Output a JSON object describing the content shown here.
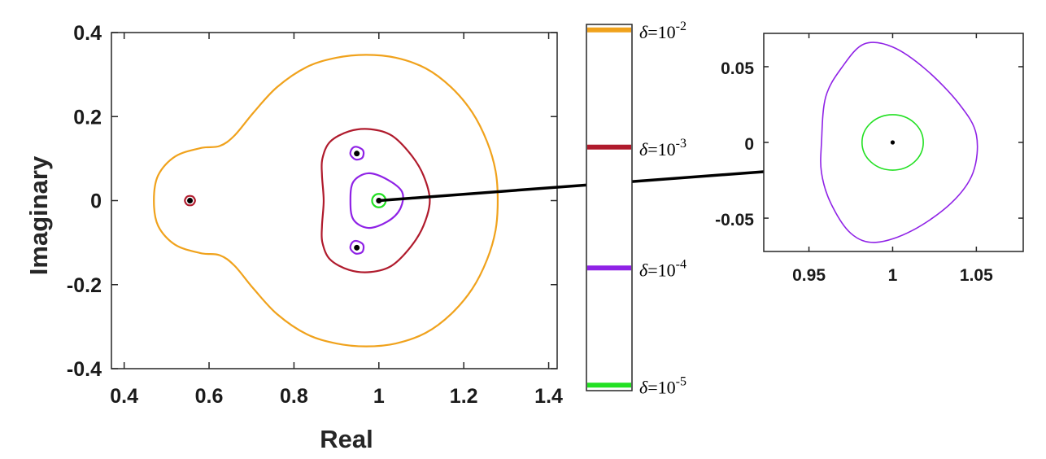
{
  "chart_data": [
    {
      "type": "line",
      "name": "main-plot",
      "xlabel": "Real",
      "ylabel": "Imaginary",
      "xlim": [
        0.37,
        1.42
      ],
      "ylim": [
        -0.4,
        0.4
      ],
      "xticks": [
        "0.4",
        "0.6",
        "0.8",
        "1",
        "1.2",
        "1.4"
      ],
      "xtick_values": [
        0.4,
        0.6,
        0.8,
        1.0,
        1.2,
        1.4
      ],
      "yticks": [
        "0.4",
        "0.2",
        "0",
        "-0.2",
        "-0.4"
      ],
      "ytick_values": [
        0.4,
        0.2,
        0.0,
        -0.2,
        -0.4
      ],
      "grid": false,
      "eigenvalues": [
        {
          "x": 0.555,
          "y": 0.0
        },
        {
          "x": 0.948,
          "y": 0.112
        },
        {
          "x": 0.948,
          "y": -0.112
        },
        {
          "x": 1.0,
          "y": 0.0
        }
      ],
      "series": [
        {
          "legend": "δ=10^-2",
          "color": "#f0a21c",
          "curves": [
            [
              [
                0.47,
                0.0
              ],
              [
                0.48,
                0.06
              ],
              [
                0.52,
                0.105
              ],
              [
                0.58,
                0.125
              ],
              [
                0.625,
                0.13
              ],
              [
                0.66,
                0.155
              ],
              [
                0.705,
                0.21
              ],
              [
                0.76,
                0.27
              ],
              [
                0.83,
                0.318
              ],
              [
                0.9,
                0.34
              ],
              [
                0.97,
                0.347
              ],
              [
                1.04,
                0.34
              ],
              [
                1.11,
                0.315
              ],
              [
                1.17,
                0.27
              ],
              [
                1.22,
                0.21
              ],
              [
                1.255,
                0.14
              ],
              [
                1.275,
                0.07
              ],
              [
                1.28,
                0.0
              ],
              [
                1.275,
                -0.07
              ],
              [
                1.255,
                -0.14
              ],
              [
                1.22,
                -0.21
              ],
              [
                1.17,
                -0.27
              ],
              [
                1.11,
                -0.315
              ],
              [
                1.04,
                -0.34
              ],
              [
                0.97,
                -0.347
              ],
              [
                0.9,
                -0.34
              ],
              [
                0.83,
                -0.318
              ],
              [
                0.76,
                -0.27
              ],
              [
                0.705,
                -0.21
              ],
              [
                0.66,
                -0.155
              ],
              [
                0.625,
                -0.13
              ],
              [
                0.58,
                -0.125
              ],
              [
                0.52,
                -0.105
              ],
              [
                0.48,
                -0.06
              ],
              [
                0.47,
                0.0
              ]
            ]
          ]
        },
        {
          "legend": "δ=10^-3",
          "color": "#b01b2d",
          "curves": [
            [
              [
                0.87,
                0.0
              ],
              [
                0.866,
                0.06
              ],
              [
                0.867,
                0.1
              ],
              [
                0.885,
                0.14
              ],
              [
                0.93,
                0.165
              ],
              [
                0.98,
                0.17
              ],
              [
                1.03,
                0.155
              ],
              [
                1.075,
                0.11
              ],
              [
                1.105,
                0.06
              ],
              [
                1.12,
                0.0
              ],
              [
                1.105,
                -0.06
              ],
              [
                1.075,
                -0.11
              ],
              [
                1.03,
                -0.155
              ],
              [
                0.98,
                -0.17
              ],
              [
                0.93,
                -0.165
              ],
              [
                0.885,
                -0.14
              ],
              [
                0.867,
                -0.1
              ],
              [
                0.866,
                -0.06
              ],
              [
                0.87,
                0.0
              ]
            ],
            [
              [
                0.567,
                0.0
              ],
              [
                0.561,
                0.01
              ],
              [
                0.549,
                0.01
              ],
              [
                0.543,
                0.0
              ],
              [
                0.549,
                -0.01
              ],
              [
                0.561,
                -0.01
              ],
              [
                0.567,
                0.0
              ]
            ]
          ]
        },
        {
          "legend": "δ=10^-4",
          "color": "#8f22e6",
          "curves": [
            [
              [
                0.933,
                0.0
              ],
              [
                0.94,
                0.045
              ],
              [
                0.975,
                0.065
              ],
              [
                1.02,
                0.05
              ],
              [
                1.055,
                0.02
              ],
              [
                1.05,
                -0.02
              ],
              [
                1.02,
                -0.05
              ],
              [
                0.975,
                -0.065
              ],
              [
                0.94,
                -0.045
              ],
              [
                0.933,
                0.0
              ]
            ],
            [
              [
                0.948,
                0.128
              ],
              [
                0.963,
                0.119
              ],
              [
                0.961,
                0.102
              ],
              [
                0.945,
                0.098
              ],
              [
                0.933,
                0.11
              ],
              [
                0.937,
                0.124
              ],
              [
                0.948,
                0.128
              ]
            ],
            [
              [
                0.948,
                -0.096
              ],
              [
                0.963,
                -0.105
              ],
              [
                0.961,
                -0.122
              ],
              [
                0.945,
                -0.126
              ],
              [
                0.933,
                -0.114
              ],
              [
                0.937,
                -0.1
              ],
              [
                0.948,
                -0.096
              ]
            ]
          ]
        },
        {
          "legend": "δ=10^-5",
          "color": "#22e022",
          "circles": [
            {
              "cx": 1.0,
              "cy": 0.0,
              "r": 0.016
            }
          ]
        }
      ],
      "annotation": {
        "from": [
          1.0,
          0.0
        ],
        "to": "inset-left-edge"
      }
    },
    {
      "type": "line",
      "name": "inset-plot",
      "xlim": [
        0.923,
        1.078
      ],
      "ylim": [
        -0.072,
        0.072
      ],
      "xticks": [
        "0.95",
        "1",
        "1.05"
      ],
      "xtick_values": [
        0.95,
        1.0,
        1.05
      ],
      "yticks": [
        "0.05",
        "0",
        "-0.05"
      ],
      "ytick_values": [
        0.05,
        0.0,
        -0.05
      ],
      "grid": false,
      "eigenvalues": [
        {
          "x": 1.0,
          "y": 0.0
        }
      ],
      "series": [
        {
          "legend": "δ=10^-4",
          "color": "#8f22e6",
          "curves": [
            [
              [
                0.9575,
                0.0
              ],
              [
                0.96,
                0.03
              ],
              [
                0.97,
                0.05
              ],
              [
                0.983,
                0.065
              ],
              [
                1.0,
                0.063
              ],
              [
                1.02,
                0.048
              ],
              [
                1.04,
                0.025
              ],
              [
                1.05,
                0.005
              ],
              [
                1.048,
                -0.02
              ],
              [
                1.035,
                -0.04
              ],
              [
                1.012,
                -0.058
              ],
              [
                0.99,
                -0.066
              ],
              [
                0.975,
                -0.06
              ],
              [
                0.963,
                -0.04
              ],
              [
                0.9575,
                -0.02
              ],
              [
                0.9575,
                0.0
              ]
            ]
          ]
        },
        {
          "legend": "δ=10^-5",
          "color": "#22e022",
          "circles": [
            {
              "cx": 1.0,
              "cy": 0.0,
              "r": 0.0183
            }
          ]
        }
      ]
    }
  ],
  "legend": {
    "items": [
      {
        "base": "δ=10",
        "exp": "-2",
        "color": "#f0a21c",
        "level": 0.985
      },
      {
        "base": "δ=10",
        "exp": "-3",
        "color": "#b01b2d",
        "level": 0.665
      },
      {
        "base": "δ=10",
        "exp": "-4",
        "color": "#8f22e6",
        "level": 0.335
      },
      {
        "base": "δ=10",
        "exp": "-5",
        "color": "#22e022",
        "level": 0.015
      }
    ]
  }
}
